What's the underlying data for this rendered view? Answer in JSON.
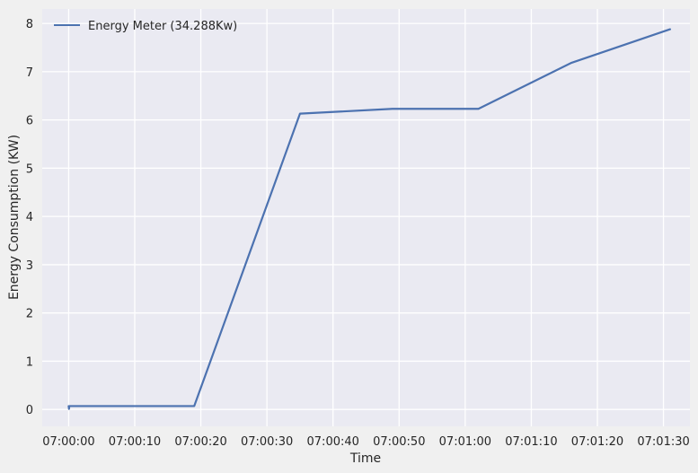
{
  "chart_data": {
    "type": "line",
    "title": "",
    "xlabel": "Time",
    "ylabel": "Energy Consumption (KW)",
    "x_unit": "seconds after 07:00:00",
    "xlim": [
      -4,
      94
    ],
    "ylim": [
      -0.35,
      8.3
    ],
    "grid": true,
    "legend_position": "top-left",
    "x_ticks": [
      {
        "value": 0,
        "label": "07:00:00"
      },
      {
        "value": 10,
        "label": "07:00:10"
      },
      {
        "value": 20,
        "label": "07:00:20"
      },
      {
        "value": 30,
        "label": "07:00:30"
      },
      {
        "value": 40,
        "label": "07:00:40"
      },
      {
        "value": 50,
        "label": "07:00:50"
      },
      {
        "value": 60,
        "label": "07:01:00"
      },
      {
        "value": 70,
        "label": "07:01:10"
      },
      {
        "value": 80,
        "label": "07:01:20"
      },
      {
        "value": 90,
        "label": "07:01:30"
      }
    ],
    "y_ticks": [
      {
        "value": 0,
        "label": "0"
      },
      {
        "value": 1,
        "label": "1"
      },
      {
        "value": 2,
        "label": "2"
      },
      {
        "value": 3,
        "label": "3"
      },
      {
        "value": 4,
        "label": "4"
      },
      {
        "value": 5,
        "label": "5"
      },
      {
        "value": 6,
        "label": "6"
      },
      {
        "value": 7,
        "label": "7"
      },
      {
        "value": 8,
        "label": "8"
      }
    ],
    "series": [
      {
        "name": "Energy Meter (34.288Kw)",
        "color": "#4c72b0",
        "x": [
          0,
          0.05,
          0.1,
          19,
          35,
          49,
          62,
          76,
          91
        ],
        "y": [
          0.07,
          0.01,
          0.07,
          0.07,
          6.13,
          6.23,
          6.23,
          7.18,
          7.88
        ]
      }
    ]
  },
  "colors": {
    "figure_bg": "#f0f0f0",
    "plot_bg": "#eaeaf2",
    "grid": "#ffffff",
    "text": "#262626"
  }
}
